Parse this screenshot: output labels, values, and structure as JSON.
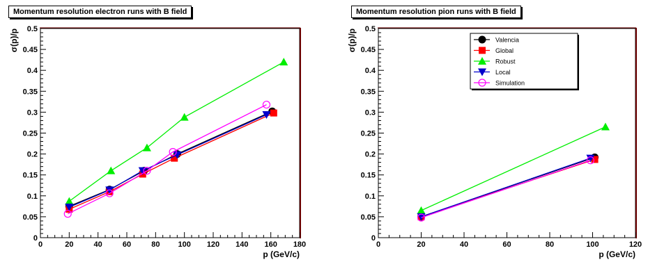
{
  "chart_data": [
    {
      "type": "line",
      "title": "Momentum resolution electron runs with B field",
      "xlabel": "p (GeV/c)",
      "ylabel": "σ(p)/p",
      "xlim": [
        0,
        180
      ],
      "ylim": [
        0,
        0.5
      ],
      "xticks": [
        0,
        20,
        40,
        60,
        80,
        100,
        120,
        140,
        160,
        180
      ],
      "yticks": [
        0,
        0.05,
        0.1,
        0.15,
        0.2,
        0.25,
        0.3,
        0.35,
        0.4,
        0.45,
        0.5
      ],
      "xtick_labels": [
        "0",
        "20",
        "40",
        "60",
        "80",
        "100",
        "120",
        "140",
        "160",
        "180"
      ],
      "ytick_labels": [
        "0",
        "0.05",
        "0.1",
        "0.15",
        "0.2",
        "0.25",
        "0.3",
        "0.35",
        "0.4",
        "0.45",
        "0.5"
      ],
      "legend": null,
      "series": [
        {
          "name": "Valencia",
          "color": "#000000",
          "marker": "circle-filled",
          "x": [
            20,
            48,
            72,
            95,
            161
          ],
          "y": [
            0.075,
            0.115,
            0.16,
            0.2,
            0.302
          ]
        },
        {
          "name": "Global",
          "color": "#ff0000",
          "marker": "square-filled",
          "x": [
            20,
            48,
            71,
            93,
            162
          ],
          "y": [
            0.068,
            0.11,
            0.152,
            0.19,
            0.298
          ]
        },
        {
          "name": "Robust",
          "color": "#00ee00",
          "marker": "triangle-up",
          "x": [
            20,
            49,
            74,
            100,
            169
          ],
          "y": [
            0.087,
            0.16,
            0.215,
            0.288,
            0.42
          ]
        },
        {
          "name": "Local",
          "color": "#0000cc",
          "marker": "triangle-down",
          "x": [
            20,
            48,
            71,
            95,
            157
          ],
          "y": [
            0.073,
            0.114,
            0.16,
            0.198,
            0.294
          ]
        },
        {
          "name": "Simulation",
          "color": "#ff00ff",
          "marker": "circle-open",
          "x": [
            19,
            48,
            74,
            92,
            157
          ],
          "y": [
            0.057,
            0.106,
            0.16,
            0.205,
            0.318
          ]
        }
      ]
    },
    {
      "type": "line",
      "title": "Momentum resolution pion runs with B field",
      "xlabel": "p (GeV/c)",
      "ylabel": "σ(p)/p",
      "xlim": [
        0,
        120
      ],
      "ylim": [
        0,
        0.5
      ],
      "xticks": [
        0,
        20,
        40,
        60,
        80,
        100,
        120
      ],
      "yticks": [
        0,
        0.05,
        0.1,
        0.15,
        0.2,
        0.25,
        0.3,
        0.35,
        0.4,
        0.45,
        0.5
      ],
      "xtick_labels": [
        "0",
        "20",
        "40",
        "60",
        "80",
        "100",
        "120"
      ],
      "ytick_labels": [
        "0",
        "0.05",
        "0.1",
        "0.15",
        "0.2",
        "0.25",
        "0.3",
        "0.35",
        "0.4",
        "0.45",
        "0.5"
      ],
      "legend": "top-right",
      "series": [
        {
          "name": "Valencia",
          "color": "#000000",
          "marker": "circle-filled",
          "x": [
            20,
            101
          ],
          "y": [
            0.05,
            0.192
          ]
        },
        {
          "name": "Global",
          "color": "#ff0000",
          "marker": "square-filled",
          "x": [
            20,
            101
          ],
          "y": [
            0.05,
            0.187
          ]
        },
        {
          "name": "Robust",
          "color": "#00ee00",
          "marker": "triangle-up",
          "x": [
            20,
            106
          ],
          "y": [
            0.065,
            0.265
          ]
        },
        {
          "name": "Local",
          "color": "#0000cc",
          "marker": "triangle-down",
          "x": [
            20,
            99
          ],
          "y": [
            0.05,
            0.19
          ]
        },
        {
          "name": "Simulation",
          "color": "#ff00ff",
          "marker": "circle-open",
          "x": [
            20,
            99
          ],
          "y": [
            0.048,
            0.185
          ]
        }
      ]
    }
  ]
}
